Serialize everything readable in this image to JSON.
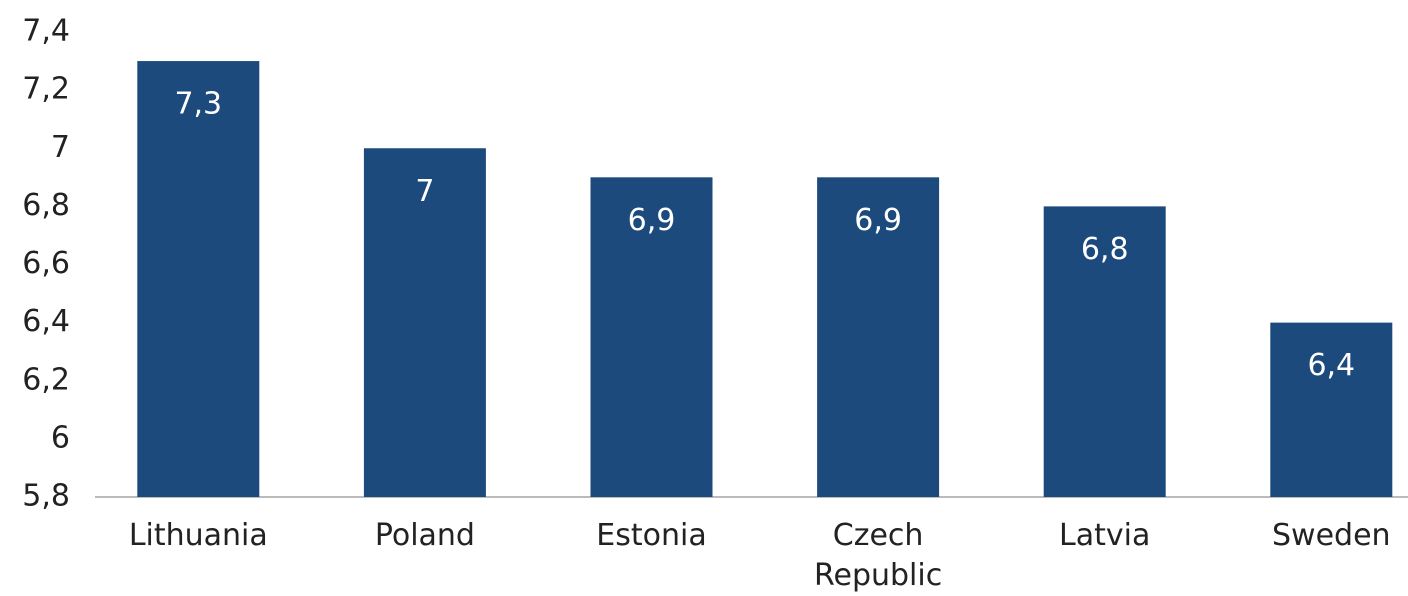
{
  "chart_data": {
    "type": "bar",
    "categories": [
      "Lithuania",
      "Poland",
      "Estonia",
      "Czech Republic",
      "Latvia",
      "Sweden"
    ],
    "values": [
      7.3,
      7,
      6.9,
      6.9,
      6.8,
      6.4
    ],
    "value_labels": [
      "7,3",
      "7",
      "6,9",
      "6,9",
      "6,8",
      "6,4"
    ],
    "color": "#1d4a7c",
    "ylim": [
      5.8,
      7.4
    ],
    "yticks": [
      {
        "value": 5.8,
        "label": "5,8"
      },
      6,
      {
        "value": 6.2,
        "label": "6,2"
      },
      {
        "value": 6.4,
        "label": "6,4"
      },
      {
        "value": 6.6,
        "label": "6,6"
      },
      {
        "value": 6.8,
        "label": "6,8"
      },
      7,
      {
        "value": 7.2,
        "label": "7,2"
      },
      {
        "value": 7.4,
        "label": "7,4"
      }
    ],
    "grid": false
  }
}
